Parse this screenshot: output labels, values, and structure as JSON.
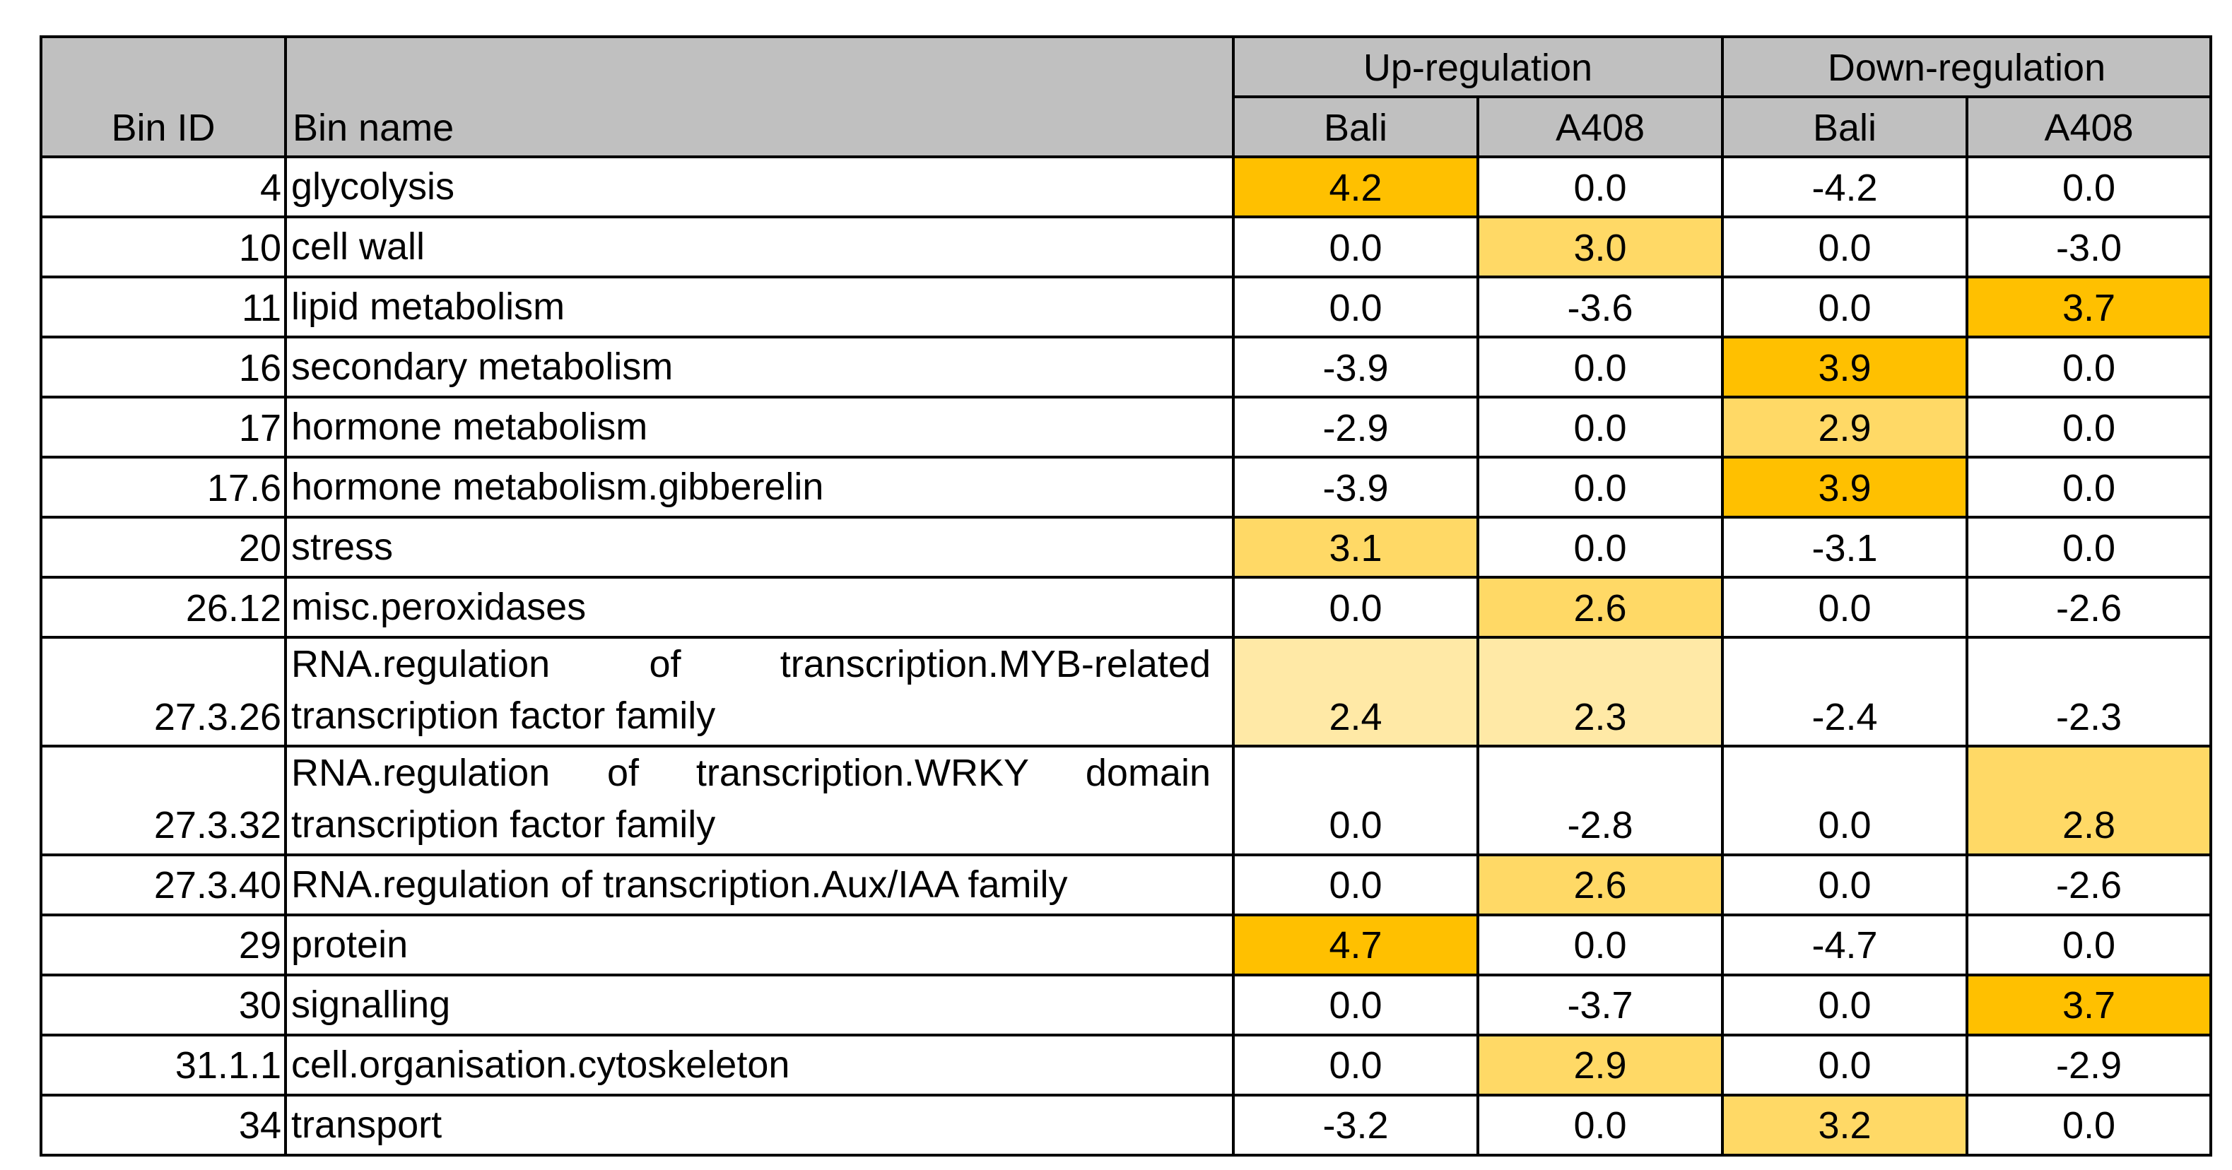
{
  "table": {
    "header": {
      "bin_id": "Bin ID",
      "bin_name": "Bin name",
      "groups": [
        {
          "label": "Up-regulation",
          "columns": [
            "Bali",
            "A408"
          ]
        },
        {
          "label": "Down-regulation",
          "columns": [
            "Bali",
            "A408"
          ]
        }
      ]
    },
    "rows": [
      {
        "id": "4",
        "name": "glycolysis",
        "values": [
          "4.2",
          "0.0",
          "-4.2",
          "0.0"
        ],
        "fills": [
          "#FFC000",
          null,
          null,
          null
        ]
      },
      {
        "id": "10",
        "name": "cell wall",
        "values": [
          "0.0",
          "3.0",
          "0.0",
          "-3.0"
        ],
        "fills": [
          null,
          "#FFD966",
          null,
          null
        ]
      },
      {
        "id": "11",
        "name": "lipid metabolism",
        "values": [
          "0.0",
          "-3.6",
          "0.0",
          "3.7"
        ],
        "fills": [
          null,
          null,
          null,
          "#FFC000"
        ]
      },
      {
        "id": "16",
        "name": "secondary metabolism",
        "values": [
          "-3.9",
          "0.0",
          "3.9",
          "0.0"
        ],
        "fills": [
          null,
          null,
          "#FFC000",
          null
        ]
      },
      {
        "id": "17",
        "name": "hormone metabolism",
        "values": [
          "-2.9",
          "0.0",
          "2.9",
          "0.0"
        ],
        "fills": [
          null,
          null,
          "#FFD966",
          null
        ]
      },
      {
        "id": "17.6",
        "name": "hormone metabolism.gibberelin",
        "values": [
          "-3.9",
          "0.0",
          "3.9",
          "0.0"
        ],
        "fills": [
          null,
          null,
          "#FFC000",
          null
        ]
      },
      {
        "id": "20",
        "name": "stress",
        "values": [
          "3.1",
          "0.0",
          "-3.1",
          "0.0"
        ],
        "fills": [
          "#FFD966",
          null,
          null,
          null
        ]
      },
      {
        "id": "26.12",
        "name": "misc.peroxidases",
        "values": [
          "0.0",
          "2.6",
          "0.0",
          "-2.6"
        ],
        "fills": [
          null,
          "#FFD966",
          null,
          null
        ]
      },
      {
        "id": "27.3.26",
        "name": "RNA.regulation of transcription.MYB-related transcription factor family",
        "values": [
          "2.4",
          "2.3",
          "-2.4",
          "-2.3"
        ],
        "fills": [
          "#FFE9A6",
          "#FFE9A6",
          null,
          null
        ]
      },
      {
        "id": "27.3.32",
        "name": "RNA.regulation of transcription.WRKY domain transcription factor family",
        "values": [
          "0.0",
          "-2.8",
          "0.0",
          "2.8"
        ],
        "fills": [
          null,
          null,
          null,
          "#FFD966"
        ]
      },
      {
        "id": "27.3.40",
        "name": "RNA.regulation of transcription.Aux/IAA family",
        "values": [
          "0.0",
          "2.6",
          "0.0",
          "-2.6"
        ],
        "fills": [
          null,
          "#FFD966",
          null,
          null
        ]
      },
      {
        "id": "29",
        "name": "protein",
        "values": [
          "4.7",
          "0.0",
          "-4.7",
          "0.0"
        ],
        "fills": [
          "#FFC000",
          null,
          null,
          null
        ]
      },
      {
        "id": "30",
        "name": "signalling",
        "values": [
          "0.0",
          "-3.7",
          "0.0",
          "3.7"
        ],
        "fills": [
          null,
          null,
          null,
          "#FFC000"
        ]
      },
      {
        "id": "31.1.1",
        "name": "cell.organisation.cytoskeleton",
        "values": [
          "0.0",
          "2.9",
          "0.0",
          "-2.9"
        ],
        "fills": [
          null,
          "#FFD966",
          null,
          null
        ]
      },
      {
        "id": "34",
        "name": "transport",
        "values": [
          "-3.2",
          "0.0",
          "3.2",
          "0.0"
        ],
        "fills": [
          null,
          null,
          "#FFD966",
          null
        ]
      }
    ]
  }
}
